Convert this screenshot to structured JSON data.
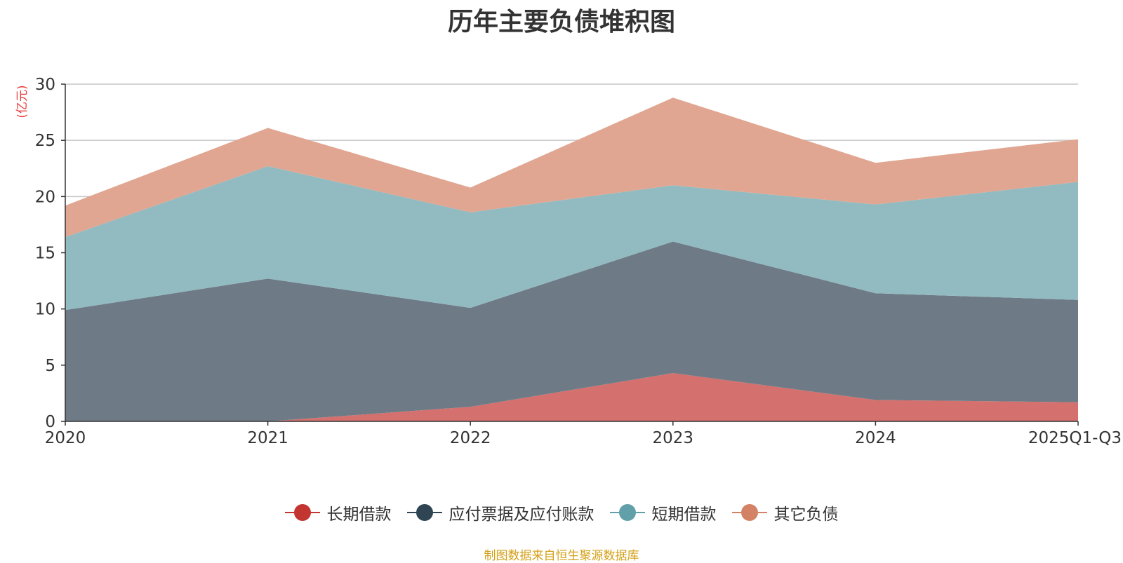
{
  "title": "历年主要负债堆积图",
  "source_note": "制图数据来自恒生聚源数据库",
  "chart_data": {
    "type": "area",
    "stacked": true,
    "title": "历年主要负债堆积图",
    "unit_label": "(亿元)",
    "categories": [
      "2020",
      "2021",
      "2022",
      "2023",
      "2024",
      "2025Q1-Q3"
    ],
    "ylim": [
      0,
      30
    ],
    "yticks": [
      0,
      5,
      10,
      15,
      20,
      25,
      30
    ],
    "grid": true,
    "legend_position": "bottom",
    "series": [
      {
        "name": "长期借款",
        "color": "#c23531",
        "fill": "#d4706d",
        "values": [
          0,
          0,
          1.3,
          4.3,
          1.9,
          1.7
        ]
      },
      {
        "name": "应付票据及应付账款",
        "color": "#2f4554",
        "fill": "#6e7b86",
        "values": [
          9.9,
          12.7,
          8.8,
          11.7,
          9.5,
          9.1
        ]
      },
      {
        "name": "短期借款",
        "color": "#61a0a8",
        "fill": "#92bbc1",
        "values": [
          6.5,
          10.0,
          8.5,
          5.0,
          7.9,
          10.5
        ]
      },
      {
        "name": "其它负债",
        "color": "#d48265",
        "fill": "#e0a691",
        "values": [
          2.8,
          3.4,
          2.2,
          7.8,
          3.7,
          3.8
        ]
      }
    ]
  }
}
